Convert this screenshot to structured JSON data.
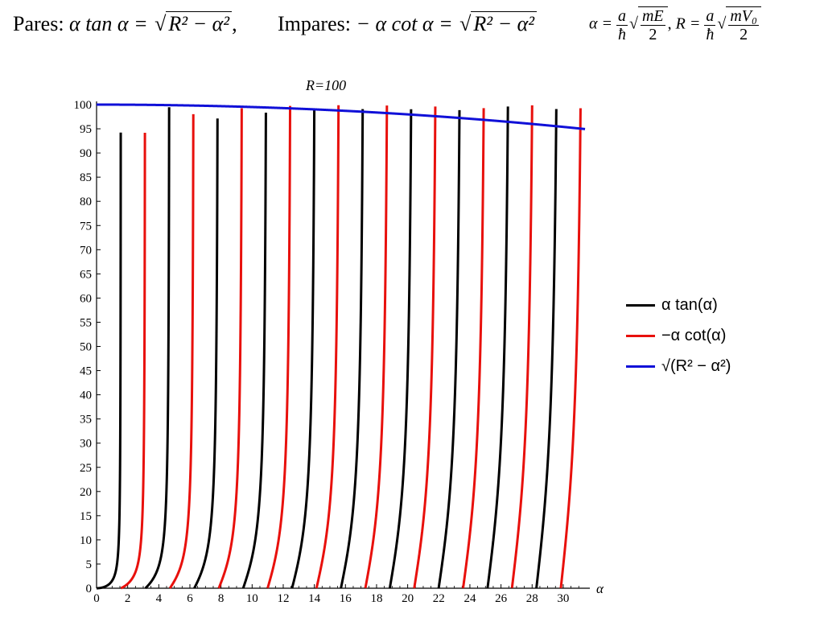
{
  "equations": {
    "pares_label": "Pares:",
    "pares_lhs": "α tan α = ",
    "pares_root": "R² − α²",
    "pares_tail": ",",
    "impares_label": "Impares:",
    "impares_lhs": "− α cot α = ",
    "impares_root": "R² − α²",
    "alpha_def_lhs": "α = ",
    "alpha_def_num": "a",
    "alpha_def_den": "ħ",
    "alpha_def_root_num": "mE",
    "alpha_def_root_den": "2",
    "sep": ",",
    "r_def_lhs": "R = ",
    "r_def_num": "a",
    "r_def_den": "ħ",
    "r_def_root_num": "mV₀",
    "r_def_root_den": "2"
  },
  "chart_data": {
    "type": "line",
    "title": "R=100",
    "xlabel": "α",
    "ylabel": "",
    "xlim": [
      0,
      31.4
    ],
    "ylim": [
      0,
      100
    ],
    "xticks": [
      0,
      2,
      4,
      6,
      8,
      10,
      12,
      14,
      16,
      18,
      20,
      22,
      24,
      26,
      28,
      30
    ],
    "yticks": [
      0,
      5,
      10,
      15,
      20,
      25,
      30,
      35,
      40,
      45,
      50,
      55,
      60,
      65,
      70,
      75,
      80,
      85,
      90,
      95,
      100
    ],
    "R": 100,
    "series": [
      {
        "name": "α tan(α)",
        "function": "alpha*tan(alpha)",
        "color": "#000000"
      },
      {
        "name": "−α cot(α)",
        "function": "-alpha*cot(alpha)",
        "color": "#e8100c"
      },
      {
        "name": "√(R² − α²)",
        "function": "sqrt(R^2-alpha^2)",
        "color": "#1010d8"
      }
    ],
    "legend_position": "right"
  }
}
